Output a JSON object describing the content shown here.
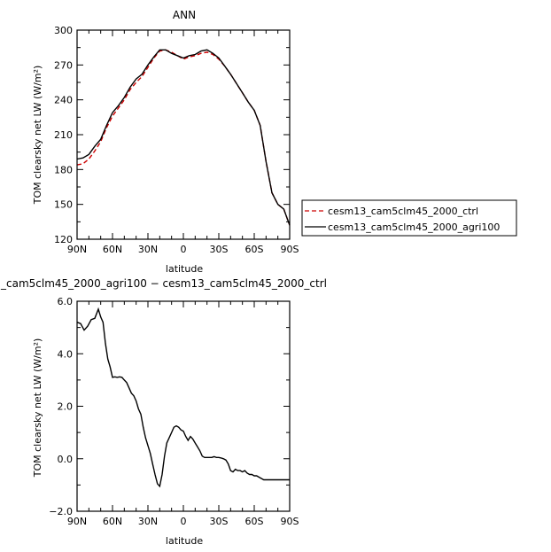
{
  "chart_data": [
    {
      "type": "line",
      "title": "ANN",
      "xlabel": "latitude",
      "ylabel": "TOM clearsky net LW (W/m²)",
      "xlim": [
        90,
        -90
      ],
      "ylim": [
        120,
        300
      ],
      "x_ticks": [
        {
          "value": 90,
          "label": "90N"
        },
        {
          "value": 60,
          "label": "60N"
        },
        {
          "value": 30,
          "label": "30N"
        },
        {
          "value": 0,
          "label": "0"
        },
        {
          "value": -30,
          "label": "30S"
        },
        {
          "value": -60,
          "label": "60S"
        },
        {
          "value": -90,
          "label": "90S"
        }
      ],
      "y_ticks": [
        120,
        150,
        180,
        210,
        240,
        270,
        300
      ],
      "legend_placement": "right",
      "series": [
        {
          "name": "cesm13_cam5clm45_2000_ctrl",
          "color": "#cc0000",
          "dash": "dashed",
          "x": [
            90,
            85,
            80,
            75,
            70,
            65,
            60,
            55,
            50,
            45,
            40,
            35,
            30,
            25,
            20,
            15,
            10,
            5,
            0,
            -5,
            -10,
            -15,
            -20,
            -25,
            -30,
            -35,
            -40,
            -45,
            -50,
            -55,
            -60,
            -65,
            -70,
            -75,
            -80,
            -85,
            -90
          ],
          "y": [
            184,
            185,
            189,
            196,
            204,
            216,
            226,
            233,
            240,
            249,
            255,
            260,
            268,
            276,
            282,
            283,
            281,
            278,
            275,
            277,
            278,
            280,
            281,
            279,
            275,
            269,
            262,
            254,
            246,
            238,
            231,
            218,
            187,
            160,
            150,
            146,
            132
          ]
        },
        {
          "name": "cesm13_cam5clm45_2000_agri100",
          "color": "#000000",
          "dash": "solid",
          "x": [
            90,
            85,
            80,
            75,
            70,
            65,
            60,
            55,
            50,
            45,
            40,
            35,
            30,
            25,
            20,
            15,
            10,
            5,
            0,
            -5,
            -10,
            -15,
            -20,
            -25,
            -30,
            -35,
            -40,
            -45,
            -50,
            -55,
            -60,
            -65,
            -70,
            -75,
            -80,
            -85,
            -90
          ],
          "y": [
            189,
            190,
            193,
            200,
            206,
            218,
            229,
            235,
            242,
            251,
            258,
            262,
            270,
            277,
            283,
            283,
            280,
            278,
            276,
            278,
            279,
            282,
            283,
            280,
            276,
            269,
            262,
            254,
            246,
            238,
            231,
            218,
            187,
            160,
            150,
            146,
            132
          ]
        }
      ]
    },
    {
      "type": "line",
      "title": "_cam5clm45_2000_agri100 − cesm13_cam5clm45_2000_ctrl",
      "xlabel": "latitude",
      "ylabel": "TOM clearsky net LW (W/m²)",
      "xlim": [
        90,
        -90
      ],
      "ylim": [
        -2,
        6
      ],
      "x_ticks": [
        {
          "value": 90,
          "label": "90N"
        },
        {
          "value": 60,
          "label": "60N"
        },
        {
          "value": 30,
          "label": "30N"
        },
        {
          "value": 0,
          "label": "0"
        },
        {
          "value": -30,
          "label": "30S"
        },
        {
          "value": -60,
          "label": "60S"
        },
        {
          "value": -90,
          "label": "90S"
        }
      ],
      "y_ticks": [
        {
          "value": -2,
          "label": "−2.0"
        },
        {
          "value": 0,
          "label": "0.0"
        },
        {
          "value": 2,
          "label": "2.0"
        },
        {
          "value": 4,
          "label": "4.0"
        },
        {
          "value": 6,
          "label": "6.0"
        }
      ],
      "series": [
        {
          "color": "#000000",
          "dash": "solid",
          "x": [
            90,
            87,
            84,
            81,
            78,
            75,
            72,
            70,
            68,
            66,
            64,
            62,
            60,
            58,
            56,
            54,
            52,
            50,
            48,
            46,
            44,
            42,
            40,
            38,
            36,
            34,
            32,
            30,
            28,
            26,
            24,
            22,
            20,
            18,
            16,
            14,
            12,
            10,
            8,
            6,
            4,
            2,
            0,
            -2,
            -4,
            -6,
            -8,
            -10,
            -12,
            -14,
            -16,
            -18,
            -20,
            -22,
            -24,
            -26,
            -28,
            -30,
            -32,
            -34,
            -36,
            -38,
            -40,
            -42,
            -44,
            -46,
            -48,
            -50,
            -52,
            -54,
            -56,
            -58,
            -60,
            -62,
            -64,
            -66,
            -68,
            -70,
            -72,
            -74,
            -76,
            -78,
            -80,
            -82,
            -84,
            -86,
            -88,
            -90
          ],
          "y": [
            5.2,
            5.15,
            4.9,
            5.05,
            5.3,
            5.35,
            5.7,
            5.4,
            5.2,
            4.4,
            3.8,
            3.5,
            3.1,
            3.12,
            3.1,
            3.12,
            3.1,
            3.0,
            2.9,
            2.7,
            2.5,
            2.4,
            2.2,
            1.9,
            1.7,
            1.2,
            0.8,
            0.5,
            0.2,
            -0.2,
            -0.6,
            -0.95,
            -1.05,
            -0.6,
            0.1,
            0.6,
            0.8,
            1.0,
            1.2,
            1.25,
            1.2,
            1.1,
            1.05,
            0.85,
            0.7,
            0.85,
            0.75,
            0.6,
            0.45,
            0.3,
            0.1,
            0.05,
            0.05,
            0.05,
            0.05,
            0.08,
            0.05,
            0.05,
            0.03,
            0.0,
            -0.05,
            -0.2,
            -0.45,
            -0.5,
            -0.4,
            -0.45,
            -0.45,
            -0.5,
            -0.45,
            -0.55,
            -0.6,
            -0.6,
            -0.65,
            -0.65,
            -0.7,
            -0.75,
            -0.8,
            -0.8,
            -0.8,
            -0.8,
            -0.8,
            -0.8,
            -0.8,
            -0.8,
            -0.8,
            -0.8,
            -0.8,
            -0.8
          ]
        }
      ]
    }
  ]
}
